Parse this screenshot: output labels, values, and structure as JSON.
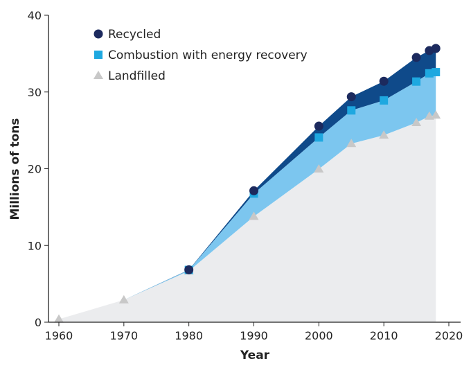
{
  "chart_data": {
    "type": "area",
    "stacked": true,
    "xlabel": "Year",
    "ylabel": "Millions of tons",
    "xlim": [
      1960,
      2020
    ],
    "ylim": [
      0,
      40
    ],
    "xticks": [
      1960,
      1970,
      1980,
      1990,
      2000,
      2010,
      2020
    ],
    "yticks": [
      0,
      10,
      20,
      30,
      40
    ],
    "grid": false,
    "legend_position": "top-left",
    "x": [
      1960,
      1970,
      1980,
      1990,
      2000,
      2005,
      2010,
      2015,
      2017,
      2018
    ],
    "series": [
      {
        "name": "Landfilled",
        "marker": "triangle",
        "marker_color": "#c8c8c8",
        "fill_color": "#ebecee",
        "values": [
          0.39,
          2.9,
          6.67,
          13.78,
          19.95,
          23.27,
          24.37,
          26.01,
          26.84,
          26.97
        ]
      },
      {
        "name": "Combustion with energy recovery",
        "marker": "square",
        "marker_color": "#1ea8e0",
        "fill_color": "#7cc6ef",
        "values": [
          0,
          0,
          0.14,
          2.98,
          4.12,
          4.33,
          4.53,
          5.35,
          5.59,
          5.62
        ]
      },
      {
        "name": "Recycled",
        "marker": "circle",
        "marker_color": "#1c2a5e",
        "fill_color": "#0f4a8a",
        "values": [
          0,
          0,
          0.02,
          0.37,
          1.48,
          1.78,
          2.5,
          3.14,
          2.96,
          3.09
        ]
      }
    ],
    "legend_order": [
      "Recycled",
      "Combustion with energy recovery",
      "Landfilled"
    ]
  }
}
